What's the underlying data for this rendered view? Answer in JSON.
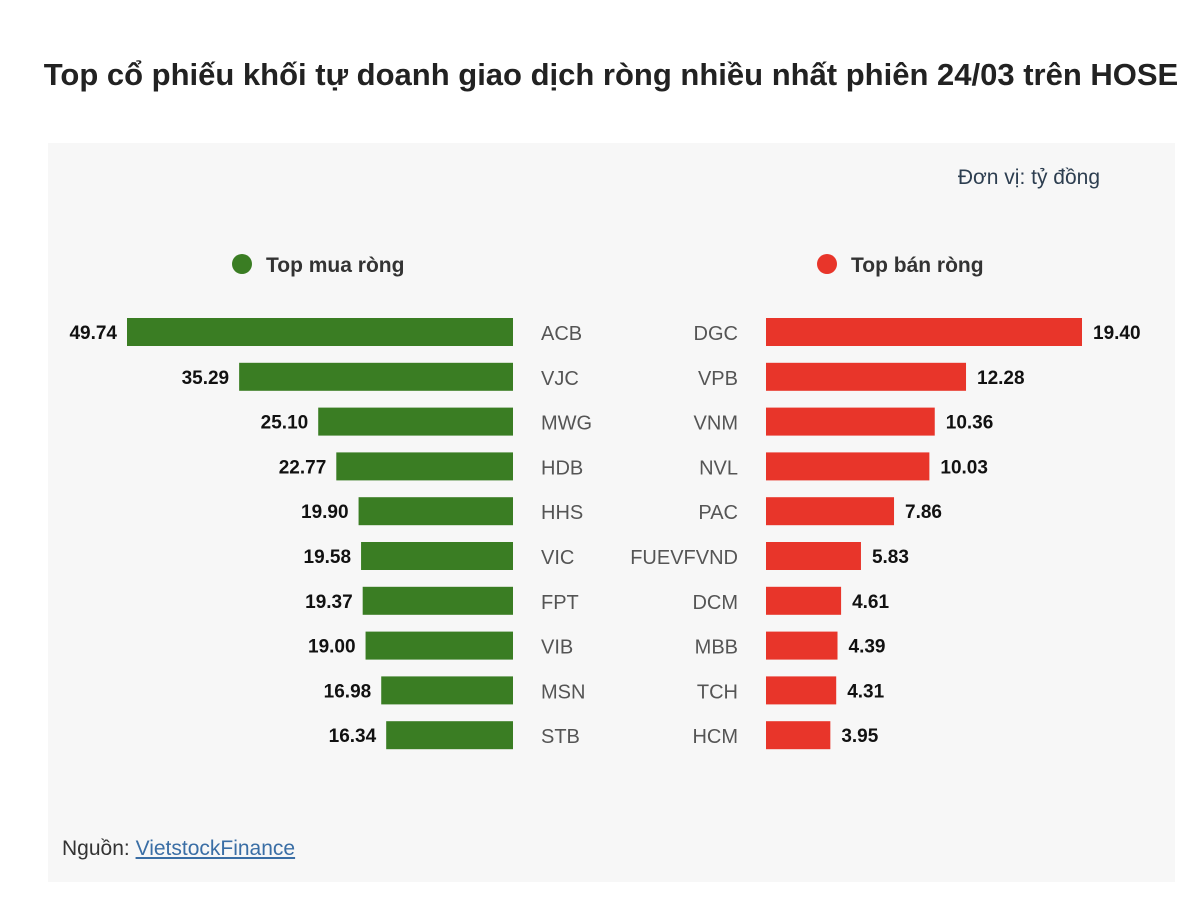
{
  "title": "Top cổ phiếu khối tự doanh giao dịch ròng nhiều nhất phiên 24/03 trên HOSE",
  "unit": "Đơn vị: tỷ đồng",
  "source": {
    "label": "Nguồn:",
    "link": "VietstockFinance"
  },
  "colors": {
    "buy": "#3a7d23",
    "sell": "#e8352a"
  },
  "chart_data": [
    {
      "type": "bar",
      "orientation": "horizontal",
      "name": "Top mua ròng",
      "categories": [
        "ACB",
        "VJC",
        "MWG",
        "HDB",
        "HHS",
        "VIC",
        "FPT",
        "VIB",
        "MSN",
        "STB"
      ],
      "values": [
        49.74,
        35.29,
        25.1,
        22.77,
        19.9,
        19.58,
        19.37,
        19.0,
        16.98,
        16.34
      ],
      "labels": [
        "49.74",
        "35.29",
        "25.10",
        "22.77",
        "19.90",
        "19.58",
        "19.37",
        "19.00",
        "16.98",
        "16.34"
      ],
      "legend": "top"
    },
    {
      "type": "bar",
      "orientation": "horizontal",
      "name": "Top bán ròng",
      "categories": [
        "DGC",
        "VPB",
        "VNM",
        "NVL",
        "PAC",
        "FUEVFVND",
        "DCM",
        "MBB",
        "TCH",
        "HCM"
      ],
      "values": [
        19.4,
        12.28,
        10.36,
        10.03,
        7.86,
        5.83,
        4.61,
        4.39,
        4.31,
        3.95
      ],
      "labels": [
        "19.40",
        "12.28",
        "10.36",
        "10.03",
        "7.86",
        "5.83",
        "4.61",
        "4.39",
        "4.31",
        "3.95"
      ],
      "legend": "top"
    }
  ]
}
